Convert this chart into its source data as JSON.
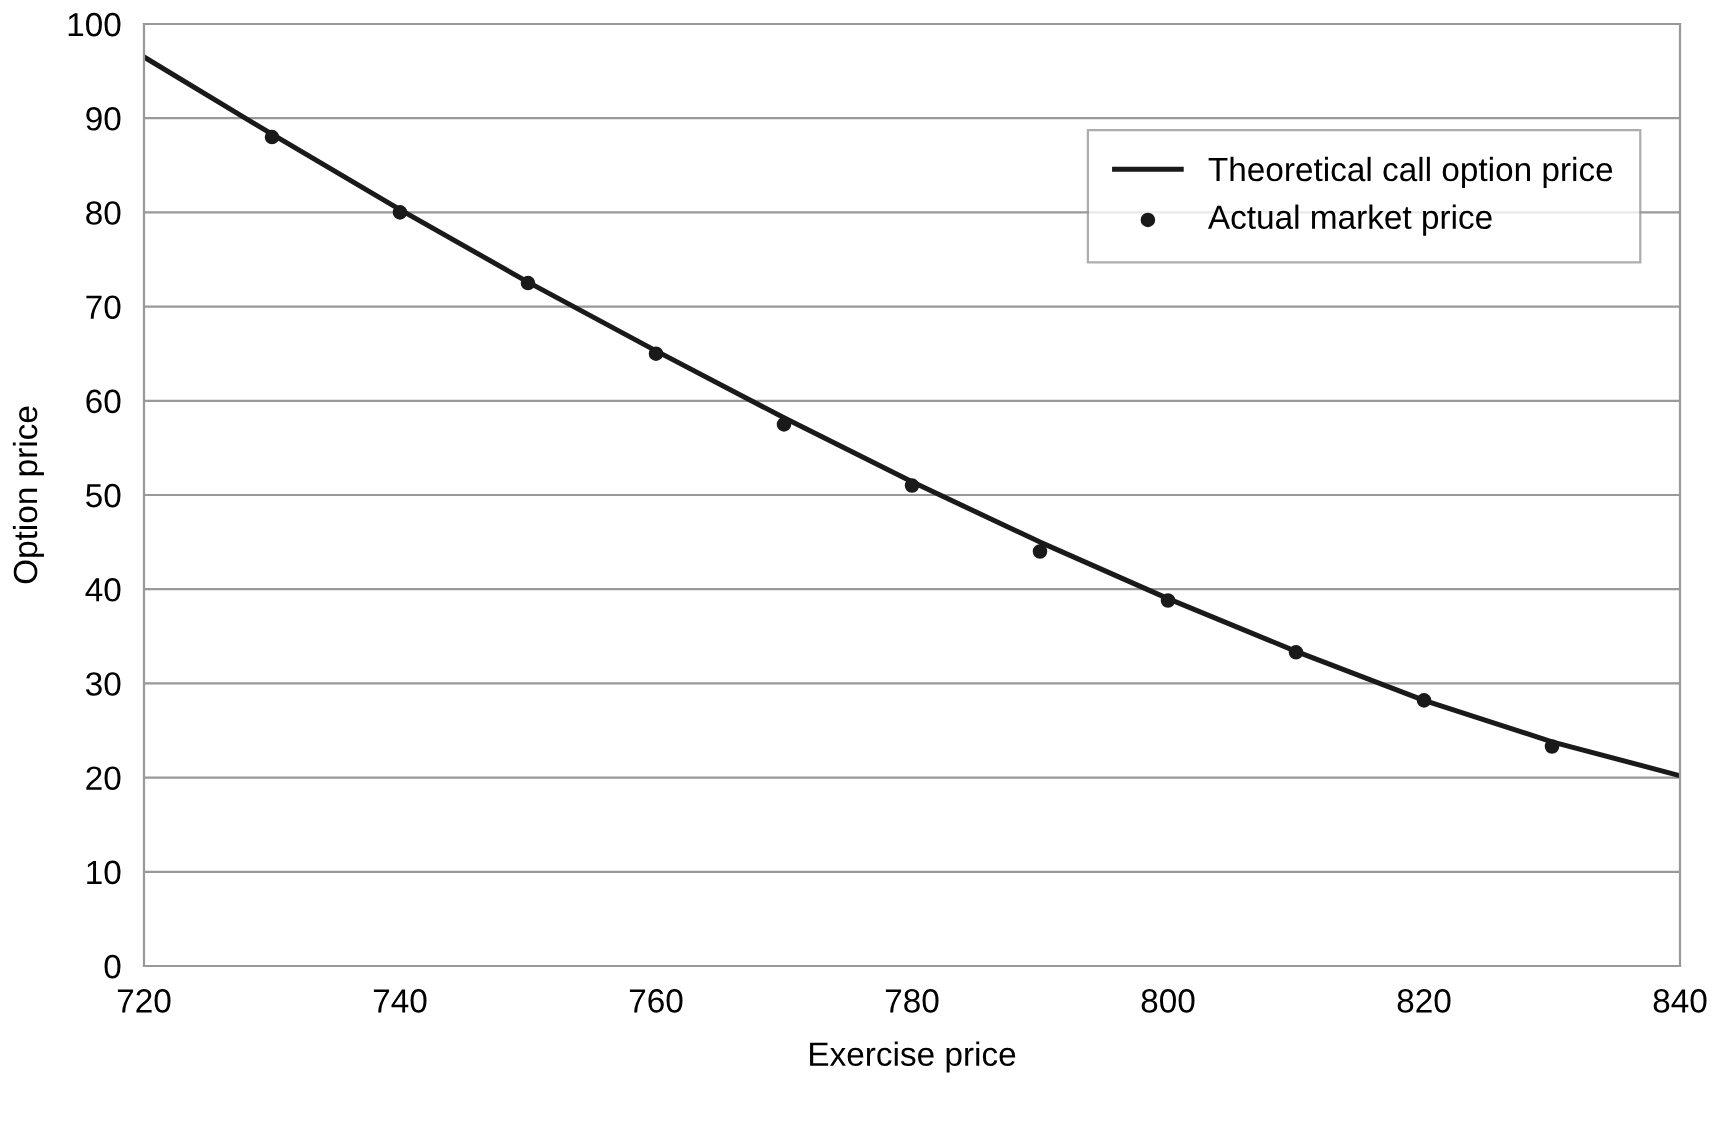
{
  "chart_data": {
    "type": "line",
    "xlabel": "Exercise price",
    "ylabel": "Option price",
    "xlim": [
      720,
      840
    ],
    "xticks": [
      720,
      740,
      760,
      780,
      800,
      820,
      840
    ],
    "ylim": [
      0,
      100
    ],
    "yticks": [
      0,
      10,
      20,
      30,
      40,
      50,
      60,
      70,
      80,
      90,
      100
    ],
    "grid": "y",
    "legend": "top right",
    "series": [
      {
        "name": "Theoretical call option price",
        "color": "#1a1a1a",
        "marker": "none",
        "x": [
          720,
          730,
          740,
          750,
          760,
          770,
          780,
          790,
          800,
          810,
          820,
          830,
          840
        ],
        "values": [
          96.5,
          88.3,
          80.3,
          72.6,
          65.3,
          58.2,
          51.4,
          45.0,
          39.0,
          33.4,
          28.2,
          23.8,
          20.2
        ]
      },
      {
        "name": "Actual market price",
        "type": "scatter",
        "color": "#1a1a1a",
        "marker": "circle",
        "x": [
          730,
          740,
          750,
          760,
          770,
          780,
          790,
          800,
          810,
          820,
          830
        ],
        "values": [
          88,
          80,
          72.5,
          65,
          57.5,
          51,
          44,
          38.8,
          33.3,
          28.2,
          23.3
        ]
      }
    ]
  }
}
